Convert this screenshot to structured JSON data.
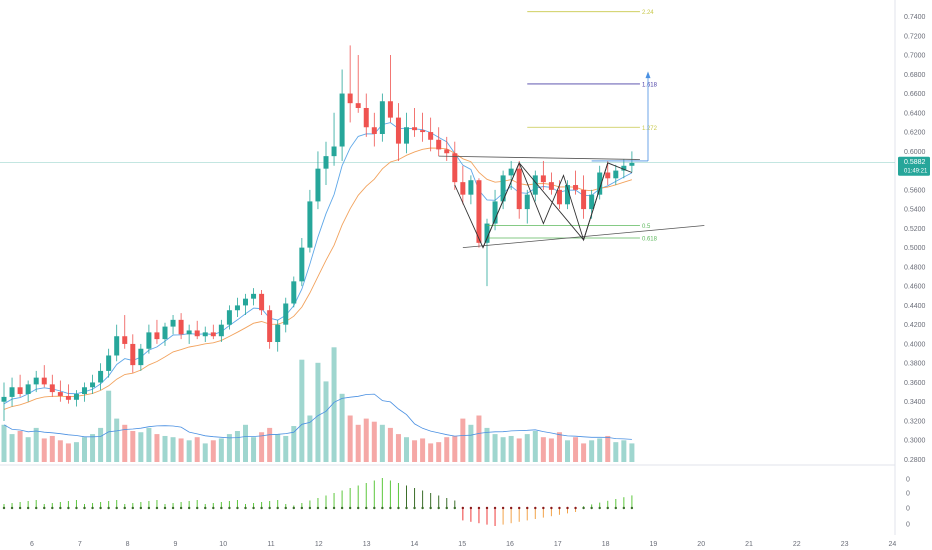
{
  "chart_data": {
    "type": "candlestick",
    "colors": {
      "up": "#26a69a",
      "down": "#ef5350",
      "volume_up": "#9fd6cf",
      "volume_down": "#f5a8a6",
      "ema_fast": "#5fa8e8",
      "ema_slow": "#f2a35e",
      "volume_ma": "#4a90e2",
      "wave_lines": "#333333",
      "fib_gold": "#c8c84a",
      "fib_green": "#5cb85c",
      "fib_purple": "#4a3fa5",
      "projection": "#4a90e2",
      "label_blue": "#2962ff",
      "osc_green": "#5cc73c",
      "osc_dark_green": "#3b6e2a",
      "osc_red": "#ef3b3b",
      "osc_orange": "#f2a34a",
      "osc_dark_red": "#8b1a1a"
    },
    "y_axis": {
      "ylim": [
        0.27,
        0.75
      ],
      "ticks": [
        "0.7400",
        "0.7200",
        "0.7000",
        "0.6800",
        "0.6600",
        "0.6400",
        "0.6200",
        "0.6000",
        "0.5600",
        "0.5400",
        "0.5200",
        "0.5000",
        "0.4800",
        "0.4600",
        "0.4400",
        "0.4200",
        "0.4000",
        "0.3800",
        "0.3600",
        "0.3400",
        "0.3200",
        "0.3000",
        "0.2800"
      ],
      "last_price": "0.5882",
      "countdown": "01:49:21"
    },
    "x_axis": {
      "ticks": [
        {
          "label": "6",
          "day": 6
        },
        {
          "label": "7",
          "day": 7
        },
        {
          "label": "8",
          "day": 8
        },
        {
          "label": "9",
          "day": 9
        },
        {
          "label": "10",
          "day": 10
        },
        {
          "label": "11",
          "day": 11
        },
        {
          "label": "12",
          "day": 12
        },
        {
          "label": "13",
          "day": 13
        },
        {
          "label": "14",
          "day": 14
        },
        {
          "label": "15",
          "day": 15
        },
        {
          "label": "16",
          "day": 16
        },
        {
          "label": "17",
          "day": 17
        },
        {
          "label": "18",
          "day": 18
        },
        {
          "label": "19",
          "day": 19
        },
        {
          "label": "20",
          "day": 20
        },
        {
          "label": "21",
          "day": 21
        },
        {
          "label": "22",
          "day": 22
        },
        {
          "label": "23",
          "day": 23
        },
        {
          "label": "24",
          "day": 24
        }
      ]
    },
    "oscillator_ticks": [
      "0",
      "0",
      "0",
      "0"
    ],
    "candles": [
      [
        0.34,
        0.36,
        0.32,
        0.345
      ],
      [
        0.345,
        0.365,
        0.335,
        0.355
      ],
      [
        0.355,
        0.368,
        0.345,
        0.348
      ],
      [
        0.348,
        0.362,
        0.34,
        0.358
      ],
      [
        0.358,
        0.372,
        0.35,
        0.365
      ],
      [
        0.365,
        0.378,
        0.355,
        0.358
      ],
      [
        0.358,
        0.368,
        0.345,
        0.35
      ],
      [
        0.35,
        0.362,
        0.34,
        0.346
      ],
      [
        0.346,
        0.358,
        0.338,
        0.342
      ],
      [
        0.342,
        0.352,
        0.335,
        0.348
      ],
      [
        0.348,
        0.36,
        0.34,
        0.355
      ],
      [
        0.355,
        0.368,
        0.348,
        0.36
      ],
      [
        0.36,
        0.38,
        0.352,
        0.372
      ],
      [
        0.372,
        0.395,
        0.365,
        0.388
      ],
      [
        0.388,
        0.42,
        0.382,
        0.408
      ],
      [
        0.408,
        0.43,
        0.395,
        0.4
      ],
      [
        0.4,
        0.41,
        0.37,
        0.378
      ],
      [
        0.378,
        0.4,
        0.372,
        0.395
      ],
      [
        0.395,
        0.42,
        0.39,
        0.412
      ],
      [
        0.412,
        0.425,
        0.4,
        0.405
      ],
      [
        0.405,
        0.422,
        0.398,
        0.418
      ],
      [
        0.418,
        0.43,
        0.41,
        0.425
      ],
      [
        0.425,
        0.432,
        0.405,
        0.41
      ],
      [
        0.41,
        0.42,
        0.4,
        0.414
      ],
      [
        0.414,
        0.424,
        0.405,
        0.408
      ],
      [
        0.408,
        0.418,
        0.402,
        0.412
      ],
      [
        0.412,
        0.42,
        0.405,
        0.408
      ],
      [
        0.408,
        0.425,
        0.402,
        0.42
      ],
      [
        0.42,
        0.44,
        0.415,
        0.435
      ],
      [
        0.435,
        0.448,
        0.428,
        0.44
      ],
      [
        0.44,
        0.452,
        0.43,
        0.447
      ],
      [
        0.447,
        0.458,
        0.44,
        0.452
      ],
      [
        0.452,
        0.456,
        0.43,
        0.435
      ],
      [
        0.435,
        0.44,
        0.395,
        0.402
      ],
      [
        0.402,
        0.425,
        0.392,
        0.42
      ],
      [
        0.42,
        0.448,
        0.412,
        0.442
      ],
      [
        0.442,
        0.47,
        0.438,
        0.465
      ],
      [
        0.465,
        0.51,
        0.46,
        0.5
      ],
      [
        0.5,
        0.56,
        0.495,
        0.548
      ],
      [
        0.548,
        0.6,
        0.54,
        0.582
      ],
      [
        0.582,
        0.61,
        0.565,
        0.595
      ],
      [
        0.595,
        0.64,
        0.585,
        0.605
      ],
      [
        0.605,
        0.685,
        0.59,
        0.66
      ],
      [
        0.66,
        0.71,
        0.63,
        0.65
      ],
      [
        0.65,
        0.7,
        0.64,
        0.645
      ],
      [
        0.645,
        0.66,
        0.615,
        0.625
      ],
      [
        0.625,
        0.64,
        0.605,
        0.618
      ],
      [
        0.618,
        0.66,
        0.61,
        0.652
      ],
      [
        0.652,
        0.7,
        0.63,
        0.635
      ],
      [
        0.635,
        0.65,
        0.59,
        0.608
      ],
      [
        0.608,
        0.64,
        0.598,
        0.625
      ],
      [
        0.625,
        0.645,
        0.615,
        0.622
      ],
      [
        0.622,
        0.64,
        0.61,
        0.62
      ],
      [
        0.62,
        0.635,
        0.6,
        0.612
      ],
      [
        0.612,
        0.625,
        0.595,
        0.602
      ],
      [
        0.602,
        0.615,
        0.59,
        0.598
      ],
      [
        0.598,
        0.61,
        0.56,
        0.568
      ],
      [
        0.568,
        0.585,
        0.545,
        0.555
      ],
      [
        0.555,
        0.575,
        0.545,
        0.57
      ],
      [
        0.57,
        0.572,
        0.5,
        0.505
      ],
      [
        0.505,
        0.53,
        0.46,
        0.525
      ],
      [
        0.525,
        0.56,
        0.518,
        0.548
      ],
      [
        0.548,
        0.58,
        0.54,
        0.575
      ],
      [
        0.575,
        0.59,
        0.56,
        0.582
      ],
      [
        0.582,
        0.59,
        0.53,
        0.54
      ],
      [
        0.54,
        0.56,
        0.525,
        0.555
      ],
      [
        0.555,
        0.58,
        0.548,
        0.575
      ],
      [
        0.575,
        0.59,
        0.56,
        0.568
      ],
      [
        0.568,
        0.578,
        0.555,
        0.56
      ],
      [
        0.56,
        0.57,
        0.54,
        0.545
      ],
      [
        0.545,
        0.57,
        0.54,
        0.565
      ],
      [
        0.565,
        0.58,
        0.555,
        0.56
      ],
      [
        0.56,
        0.575,
        0.53,
        0.54
      ],
      [
        0.54,
        0.56,
        0.53,
        0.555
      ],
      [
        0.555,
        0.585,
        0.55,
        0.578
      ],
      [
        0.578,
        0.59,
        0.565,
        0.572
      ],
      [
        0.572,
        0.586,
        0.565,
        0.58
      ],
      [
        0.58,
        0.592,
        0.572,
        0.585
      ],
      [
        0.585,
        0.6,
        0.578,
        0.588
      ]
    ],
    "volumes": [
      60,
      45,
      50,
      40,
      55,
      38,
      42,
      35,
      30,
      32,
      40,
      45,
      55,
      115,
      70,
      60,
      50,
      48,
      55,
      45,
      42,
      40,
      38,
      35,
      40,
      30,
      35,
      38,
      45,
      50,
      60,
      40,
      48,
      55,
      45,
      42,
      58,
      165,
      75,
      160,
      130,
      185,
      110,
      75,
      60,
      70,
      65,
      60,
      55,
      45,
      40,
      35,
      38,
      30,
      32,
      40,
      42,
      70,
      60,
      75,
      55,
      45,
      40,
      42,
      38,
      45,
      50,
      40,
      38,
      48,
      35,
      40,
      30,
      35,
      38,
      42,
      32,
      35,
      30
    ]
  }
}
